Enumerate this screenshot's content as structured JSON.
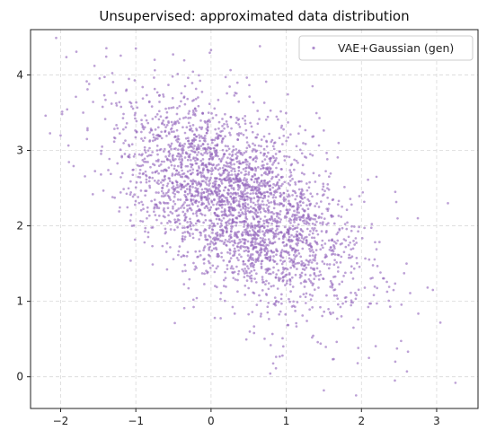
{
  "chart_data": {
    "type": "scatter",
    "title": "Unsupervised: approximated data distribution",
    "xlabel": "",
    "ylabel": "",
    "xlim": [
      -2.4,
      3.55
    ],
    "ylim": [
      -0.42,
      4.6
    ],
    "xticks": [
      -2,
      -1,
      0,
      1,
      2,
      3
    ],
    "yticks": [
      0,
      1,
      2,
      3,
      4
    ],
    "grid": true,
    "legend": "top-right",
    "series": [
      {
        "name": "VAE+Gaussian (gen)",
        "color": "#9467bd",
        "distribution": {
          "n": 3000,
          "mean": [
            0.35,
            2.3
          ],
          "std": [
            0.78,
            0.7
          ],
          "correlation": -0.55,
          "seed": 12345
        },
        "points": [
          [
            -2.2,
            3.46
          ],
          [
            -1.98,
            3.48
          ],
          [
            -1.55,
            4.12
          ],
          [
            -1.0,
            4.35
          ],
          [
            0.0,
            4.33
          ],
          [
            0.65,
            4.38
          ],
          [
            -0.75,
            4.2
          ],
          [
            1.5,
            -0.18
          ],
          [
            3.25,
            -0.08
          ],
          [
            3.15,
            2.3
          ],
          [
            2.95,
            1.15
          ],
          [
            2.45,
            2.45
          ],
          [
            2.45,
            0.2
          ],
          [
            1.95,
            0.18
          ],
          [
            2.1,
            0.25
          ],
          [
            0.95,
            0.28
          ],
          [
            0.05,
            0.78
          ],
          [
            -1.05,
            2.0
          ],
          [
            -1.65,
            3.15
          ],
          [
            -1.7,
            3.5
          ],
          [
            2.75,
            2.1
          ],
          [
            1.35,
            3.85
          ],
          [
            2.2,
            2.65
          ],
          [
            2.6,
            1.5
          ]
        ]
      }
    ]
  }
}
